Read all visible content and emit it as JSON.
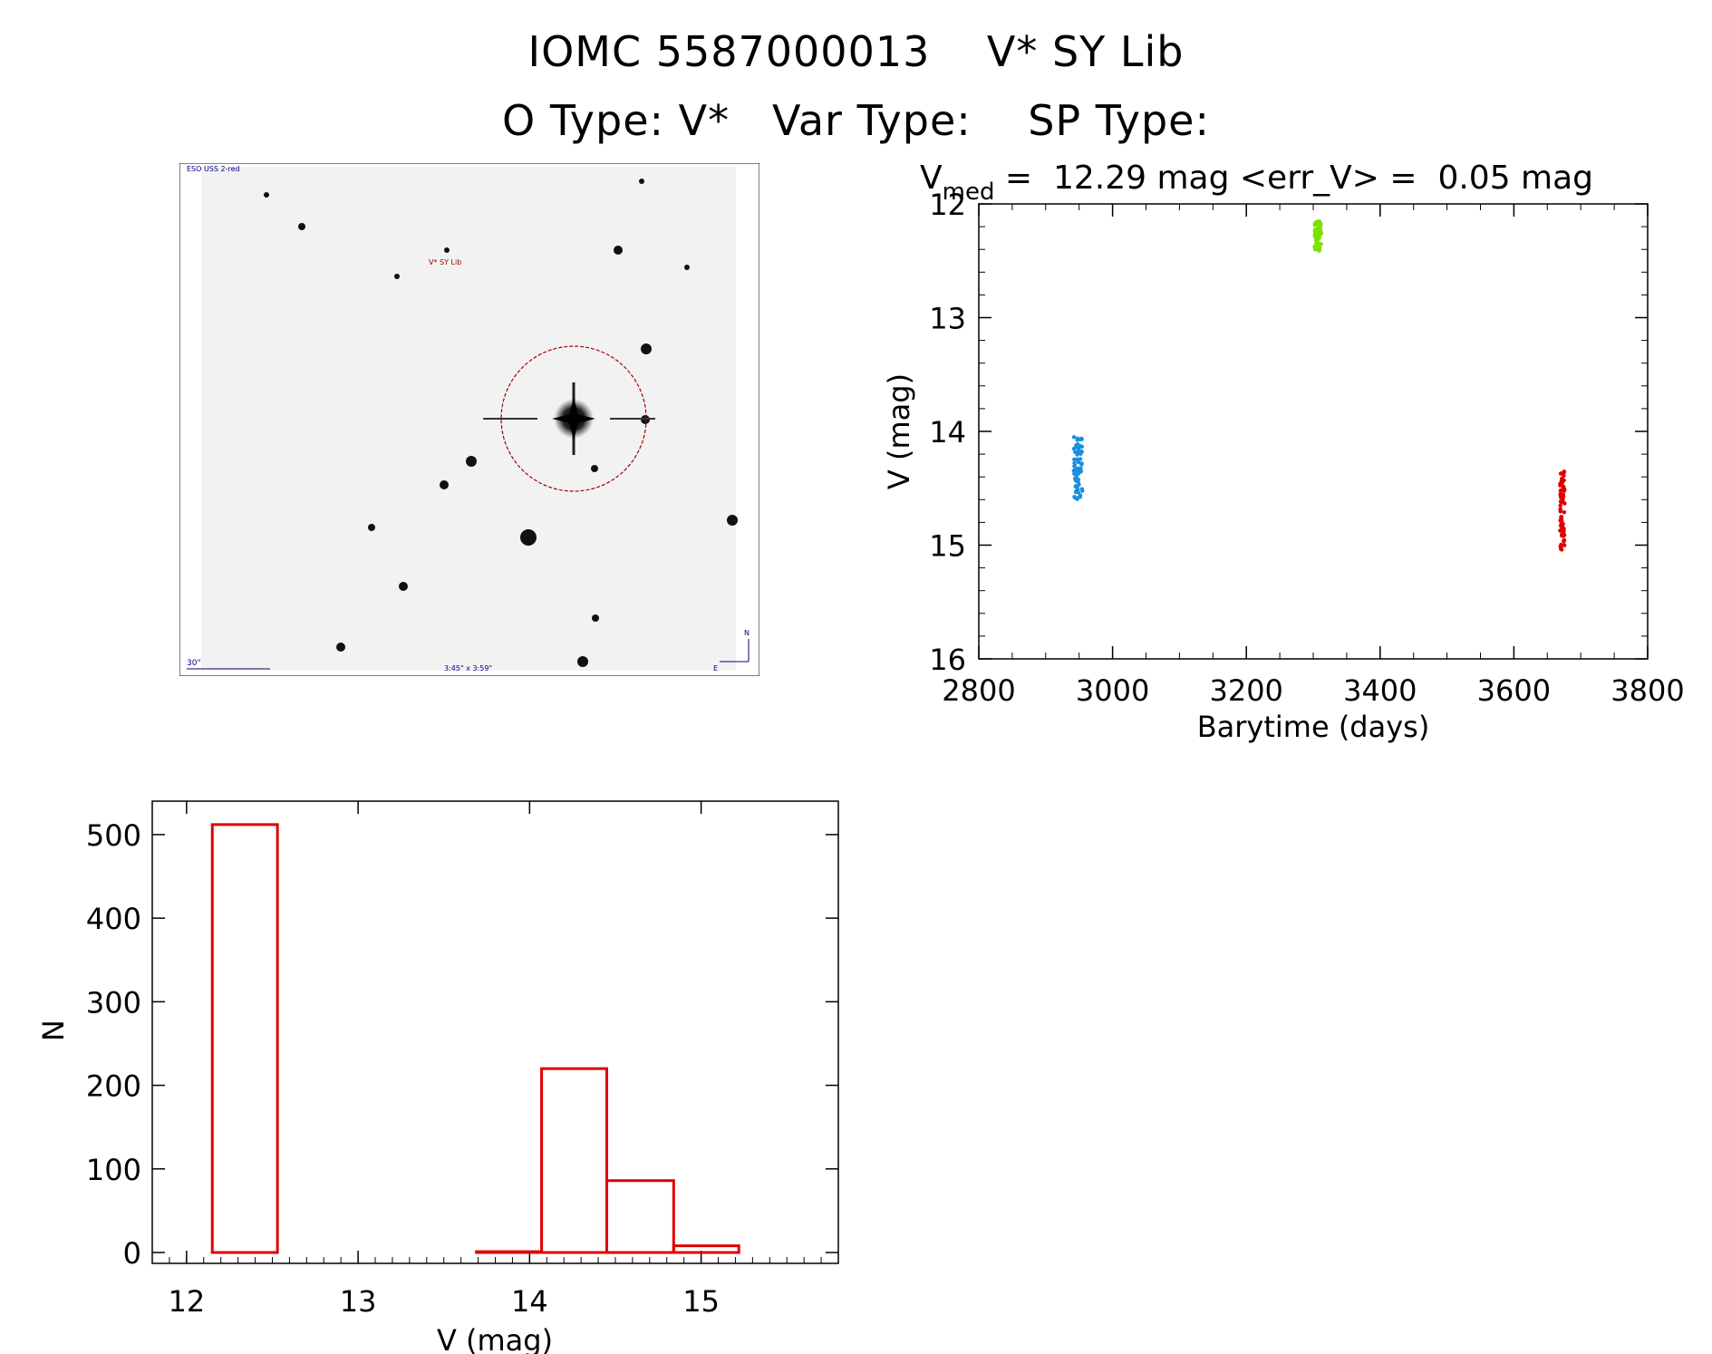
{
  "header": {
    "line1": "IOMC 5587000013    V* SY Lib",
    "line2": "O Type: V*   Var Type:    SP Type:"
  },
  "finder": {
    "survey_label": "ESO USS 2-red",
    "object_label": "V* SY Lib",
    "scale_label": "30\"",
    "coords_label": "3:45\" x 3:59\"",
    "north_label": "N",
    "east_label": "E"
  },
  "colors": {
    "histogram": "#e00000",
    "circle": "#a00000",
    "label_blue": "#000080",
    "series1": "#1a8fe0",
    "series2": "#7ee000",
    "series3": "#e00000"
  },
  "chart_data": [
    {
      "type": "scatter",
      "stats": {
        "v_symbol": "V",
        "v_sub": "med",
        "text": " =  12.29 mag <err_V> =  0.05 mag"
      },
      "xlabel": "Barytime (days)",
      "ylabel": "V (mag)",
      "xlim": [
        2800,
        3800
      ],
      "ylim": [
        16,
        12
      ],
      "y_inverted": true,
      "xticks": [
        "2800",
        "3000",
        "3200",
        "3400",
        "3600",
        "3800"
      ],
      "yticks": [
        "12",
        "13",
        "14",
        "15",
        "16"
      ],
      "series": [
        {
          "color": "#1a8fe0",
          "x": [
            2943,
            2945,
            2946,
            2948,
            2950,
            2952,
            2954
          ],
          "y_range": [
            14.05,
            14.6
          ]
        },
        {
          "color": "#7ee000",
          "x": [
            3303,
            3305,
            3307,
            3309,
            3311
          ],
          "y_range": [
            12.15,
            12.42
          ]
        },
        {
          "color": "#e00000",
          "x": [
            3670,
            3671,
            3672,
            3674,
            3675
          ],
          "y_range": [
            14.35,
            15.05
          ]
        }
      ]
    },
    {
      "type": "bar",
      "style": "histogram-step",
      "xlabel": "V (mag)",
      "ylabel": "N",
      "xlim": [
        11.8,
        15.8
      ],
      "ylim": [
        0,
        540
      ],
      "xticks": [
        "12",
        "13",
        "14",
        "15"
      ],
      "yticks": [
        "0",
        "100",
        "200",
        "300",
        "400",
        "500"
      ],
      "bins": [
        {
          "x0": 12.15,
          "x1": 12.53,
          "n": 512
        },
        {
          "x0": 12.53,
          "x1": 13.69,
          "n": 0
        },
        {
          "x0": 13.69,
          "x1": 14.07,
          "n": 1
        },
        {
          "x0": 14.07,
          "x1": 14.45,
          "n": 220
        },
        {
          "x0": 14.45,
          "x1": 14.84,
          "n": 86
        },
        {
          "x0": 14.84,
          "x1": 15.22,
          "n": 8
        }
      ]
    }
  ]
}
